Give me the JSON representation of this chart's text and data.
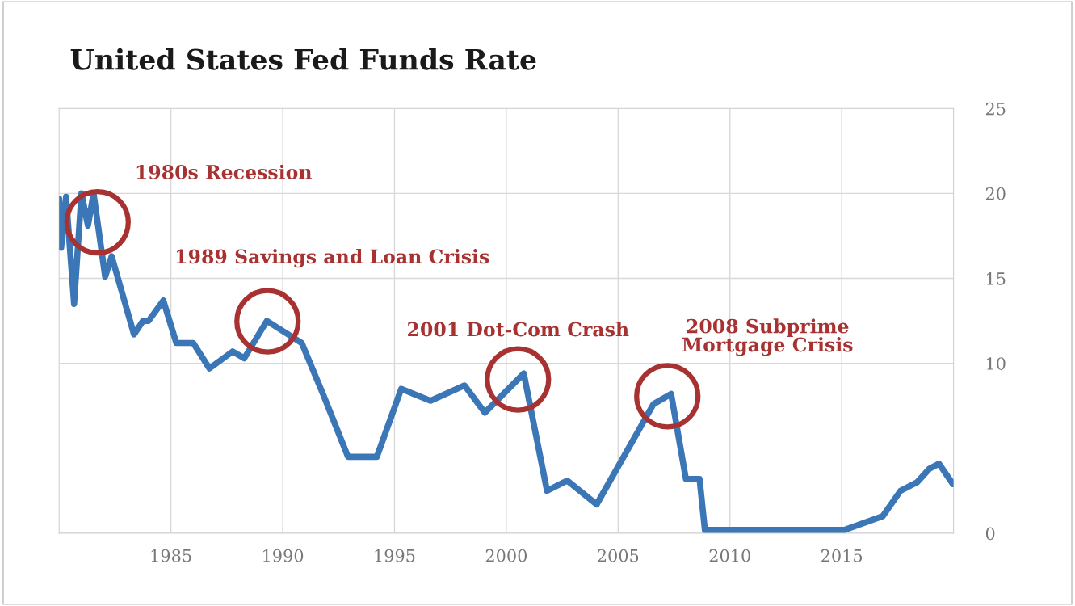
{
  "chart_data": {
    "type": "line",
    "title": "United States Fed Funds Rate",
    "x": [
      1980.0,
      1980.09,
      1980.31,
      1980.67,
      1981.0,
      1981.29,
      1981.54,
      1982.06,
      1982.35,
      1983.35,
      1983.75,
      1984.0,
      1984.66,
      1985.24,
      1986.0,
      1986.72,
      1987.76,
      1988.28,
      1989.29,
      1990.85,
      1991.83,
      1992.92,
      1994.21,
      1995.3,
      1996.61,
      1998.13,
      1999.04,
      2000.78,
      2001.82,
      2002.72,
      2004.04,
      2006.58,
      2007.37,
      2008.03,
      2008.64,
      2008.88,
      2015.12,
      2016.83,
      2017.63,
      2018.37,
      2018.92,
      2019.35,
      2019.97
    ],
    "series": [
      {
        "color": "#3b76b6",
        "values": [
          19.7,
          16.8,
          19.8,
          13.5,
          20,
          18.1,
          20,
          15.1,
          16.3,
          11.7,
          12.5,
          12.5,
          13.7,
          11.2,
          11.2,
          9.7,
          10.7,
          10.3,
          12.5,
          11.2,
          8.1,
          4.5,
          4.5,
          8.5,
          7.8,
          8.7,
          7.1,
          9.4,
          2.5,
          3.1,
          1.7,
          7.6,
          8.2,
          3.2,
          3.2,
          0.2,
          0.2,
          1.0,
          2.5,
          3.0,
          3.8,
          4.1,
          2.9
        ]
      }
    ],
    "xlim": [
      1980,
      2020
    ],
    "xticks": [
      1985,
      1990,
      1995,
      2000,
      2005,
      2010,
      2015
    ],
    "ylim": [
      0,
      25
    ],
    "yticks": [
      0,
      10,
      15,
      20,
      25
    ],
    "grid": true,
    "marker": "none",
    "line_style": "solid",
    "annotations": [
      "1980s Recession",
      "1989 Savings and Loan Crisis",
      "2001 Dot-Com Crash",
      "2008 Subprime\nMortgage Crisis"
    ]
  }
}
